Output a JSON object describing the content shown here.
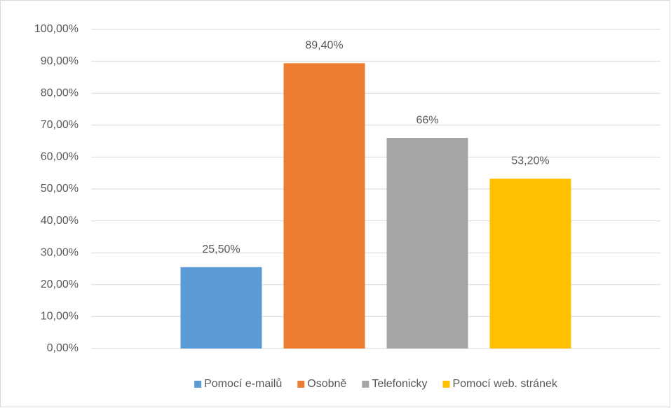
{
  "chart_data": {
    "type": "bar",
    "categories": [
      null
    ],
    "series": [
      {
        "name": "Pomocí e-mailů",
        "color": "#5b9bd5",
        "values": [
          25.5
        ],
        "value_labels": [
          "25,50%"
        ]
      },
      {
        "name": "Osobně",
        "color": "#ed7d31",
        "values": [
          89.4
        ],
        "value_labels": [
          "89,40%"
        ]
      },
      {
        "name": "Telefonicky",
        "color": "#a5a5a5",
        "values": [
          66
        ],
        "value_labels": [
          "66%"
        ]
      },
      {
        "name": "Pomocí web. stránek",
        "color": "#ffc000",
        "values": [
          53.2
        ],
        "value_labels": [
          "53,20%"
        ]
      }
    ],
    "ylim": [
      0,
      100
    ],
    "yticks": [
      {
        "value": 0,
        "label": "0,00%"
      },
      {
        "value": 10,
        "label": "10,00%"
      },
      {
        "value": 20,
        "label": "20,00%"
      },
      {
        "value": 30,
        "label": "30,00%"
      },
      {
        "value": 40,
        "label": "40,00%"
      },
      {
        "value": 50,
        "label": "50,00%"
      },
      {
        "value": 60,
        "label": "60,00%"
      },
      {
        "value": 70,
        "label": "70,00%"
      },
      {
        "value": 80,
        "label": "80,00%"
      },
      {
        "value": 90,
        "label": "90,00%"
      },
      {
        "value": 100,
        "label": "100,00%"
      }
    ],
    "grid": true,
    "legend": "bottom"
  }
}
